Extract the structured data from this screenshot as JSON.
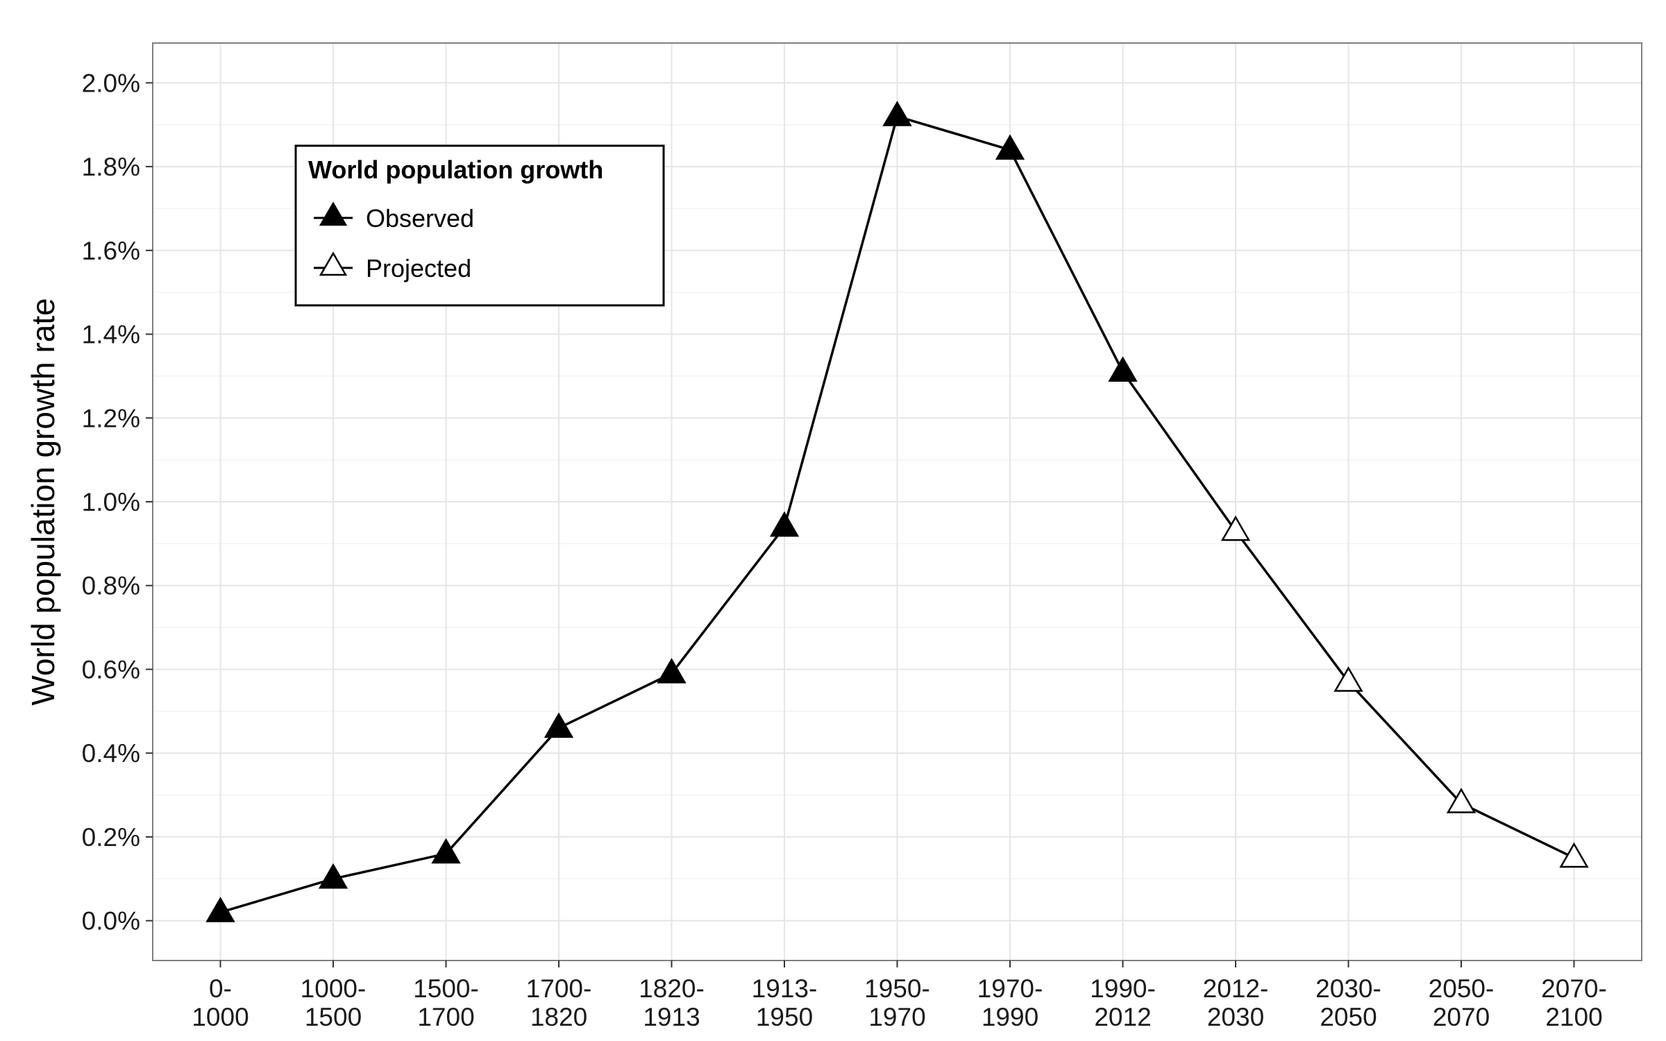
{
  "chart_data": {
    "type": "line",
    "title": "",
    "xlabel": "",
    "ylabel": "World population growth rate",
    "categories": [
      "0-\n1000",
      "1000-\n1500",
      "1500-\n1700",
      "1700-\n1820",
      "1820-\n1913",
      "1913-\n1950",
      "1950-\n1970",
      "1970-\n1990",
      "1990-\n2012",
      "2012-\n2030",
      "2030-\n2050",
      "2050-\n2070",
      "2070-\n2100"
    ],
    "values": [
      0.02,
      0.1,
      0.16,
      0.46,
      0.59,
      0.94,
      1.92,
      1.84,
      1.31,
      0.93,
      0.57,
      0.28,
      0.15
    ],
    "marker_status": [
      "Observed",
      "Observed",
      "Observed",
      "Observed",
      "Observed",
      "Observed",
      "Observed",
      "Observed",
      "Observed",
      "Projected",
      "Projected",
      "Projected",
      "Projected"
    ],
    "y_ticks": [
      "0.0%",
      "0.2%",
      "0.4%",
      "0.6%",
      "0.8%",
      "1.0%",
      "1.2%",
      "1.4%",
      "1.6%",
      "1.8%",
      "2.0%"
    ],
    "y_tick_values": [
      0,
      0.2,
      0.4,
      0.6,
      0.8,
      1.0,
      1.2,
      1.4,
      1.6,
      1.8,
      2.0
    ],
    "ylim": [
      -0.095,
      2.095
    ],
    "y_unit": "%",
    "grid": true,
    "legend": {
      "title": "World population growth",
      "placement": "top-left",
      "entries": [
        {
          "label": "Observed",
          "marker": "filled-triangle"
        },
        {
          "label": "Projected",
          "marker": "open-triangle"
        }
      ]
    },
    "colors": {
      "line": "#000000",
      "grid": "#e5e5e5",
      "panel_border": "#7f7f7f",
      "background": "#ffffff"
    }
  }
}
